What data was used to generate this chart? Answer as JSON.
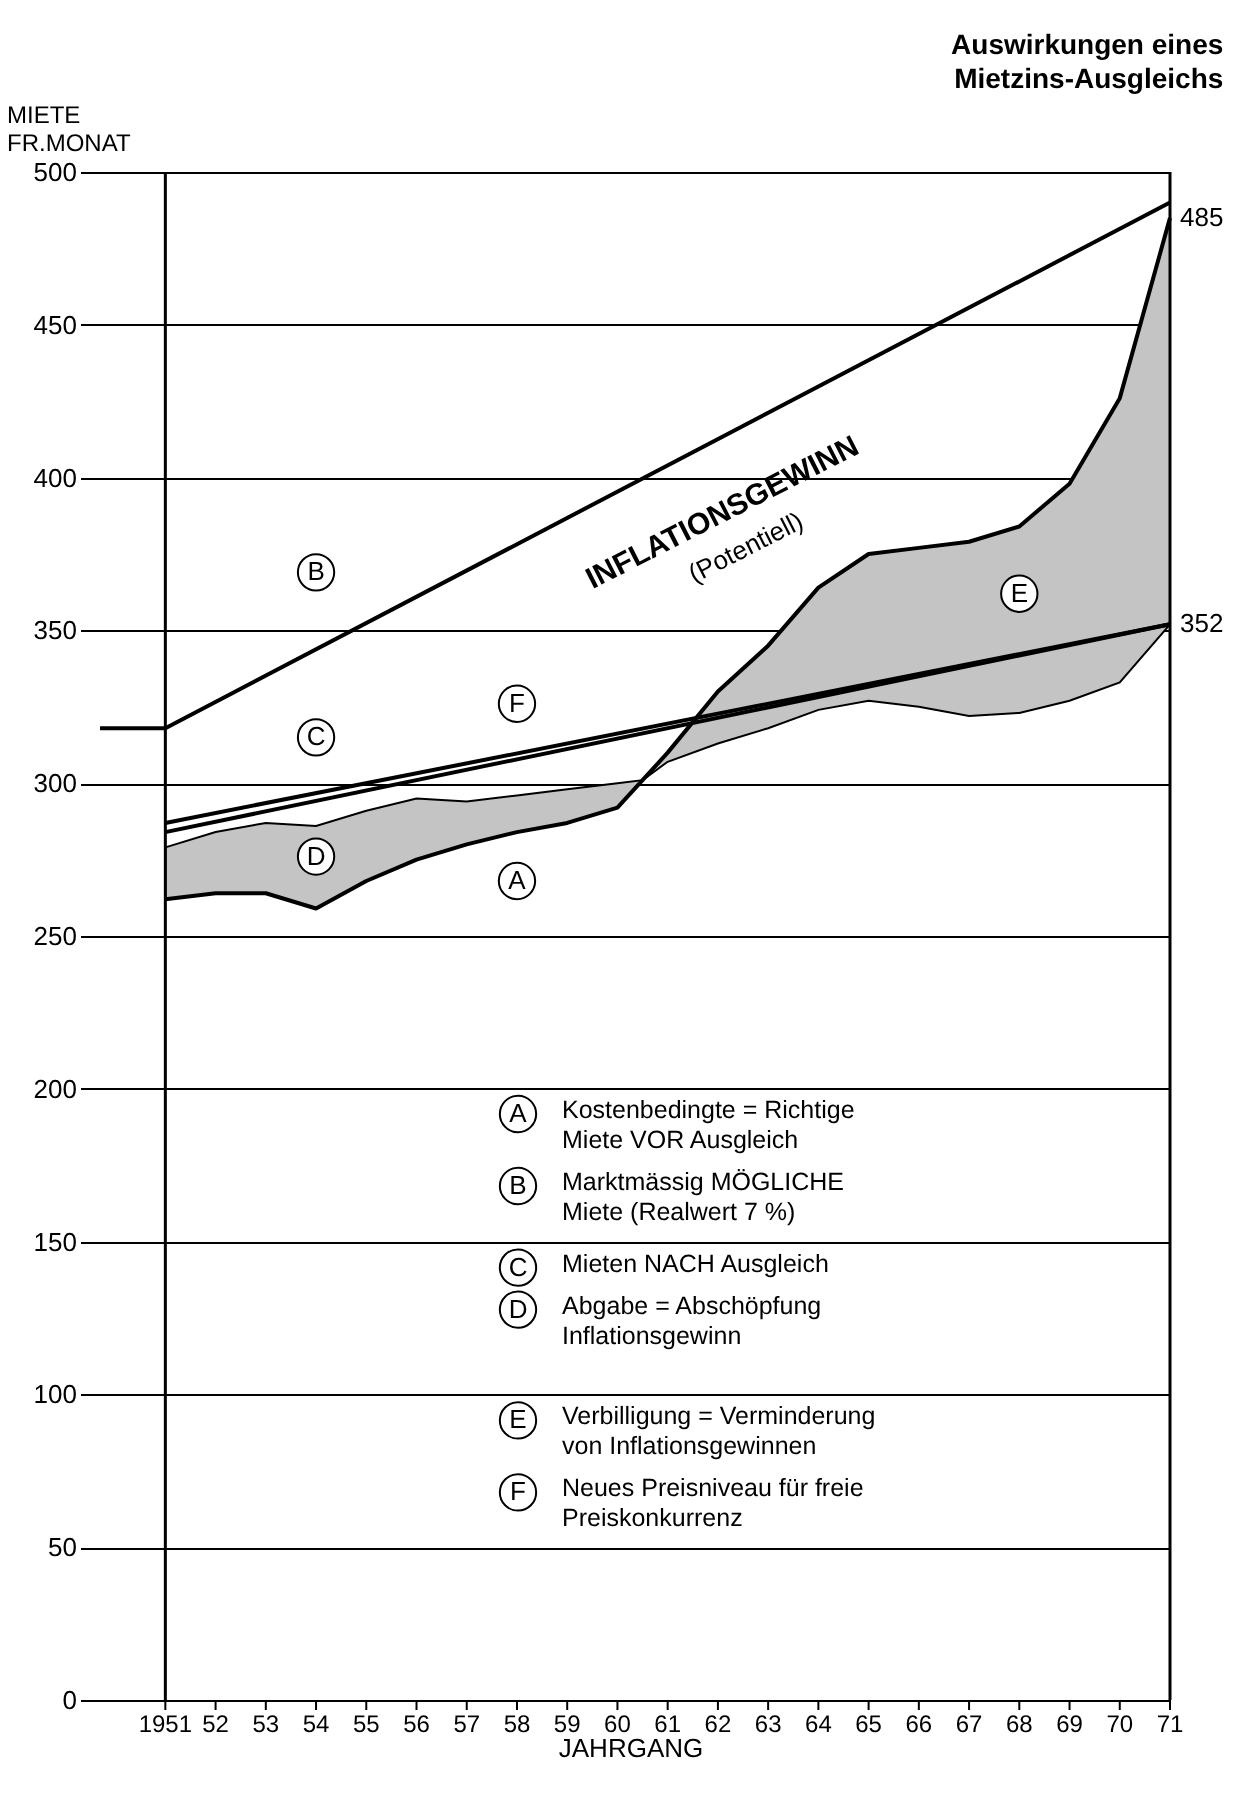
{
  "chart_data": {
    "type": "line",
    "title": "Auswirkungen eines\nMietzins-Ausgleichs",
    "ylabel": "MIETE\nFR.MONAT",
    "xlabel": "JAHRGANG",
    "xlim": [
      1949.5,
      1971
    ],
    "ylim": [
      0,
      500
    ],
    "yticks": [
      0,
      50,
      100,
      150,
      200,
      250,
      300,
      350,
      400,
      450,
      500
    ],
    "xticks": [
      1951,
      {
        "value": 1952,
        "label": "52"
      },
      {
        "value": 1953,
        "label": "53"
      },
      {
        "value": 1954,
        "label": "54"
      },
      {
        "value": 1955,
        "label": "55"
      },
      {
        "value": 1956,
        "label": "56"
      },
      {
        "value": 1957,
        "label": "57"
      },
      {
        "value": 1958,
        "label": "58"
      },
      {
        "value": 1959,
        "label": "59"
      },
      {
        "value": 1960,
        "label": "60"
      },
      {
        "value": 1961,
        "label": "61"
      },
      {
        "value": 1962,
        "label": "62"
      },
      {
        "value": 1963,
        "label": "63"
      },
      {
        "value": 1964,
        "label": "64"
      },
      {
        "value": 1965,
        "label": "65"
      },
      {
        "value": 1966,
        "label": "66"
      },
      {
        "value": 1967,
        "label": "67"
      },
      {
        "value": 1968,
        "label": "68"
      },
      {
        "value": 1969,
        "label": "69"
      },
      {
        "value": 1970,
        "label": "70"
      },
      {
        "value": 1971,
        "label": "71"
      }
    ],
    "grid": "y",
    "series": [
      {
        "color": "#000000",
        "x": [
          1951,
          1952,
          1953,
          1954,
          1955,
          1956,
          1957,
          1958,
          1959,
          1960,
          1960.5,
          1961,
          1962,
          1963,
          1964,
          1965,
          1966,
          1967,
          1968,
          1969,
          1970,
          1971
        ],
        "values": [
          262,
          264,
          264,
          259,
          268,
          275,
          280,
          284,
          287,
          292,
          301,
          310,
          330,
          345,
          364,
          375,
          377,
          379,
          384,
          398,
          426,
          485
        ],
        "lower": [
          262,
          264,
          264,
          259,
          268,
          275,
          280,
          284,
          287,
          292,
          301,
          307,
          313,
          318,
          324,
          327,
          325,
          322,
          323,
          327,
          333,
          352
        ],
        "upper": [
          279,
          284,
          287,
          286,
          291,
          295,
          294,
          296,
          298,
          300,
          301,
          310,
          330,
          345,
          364,
          375,
          377,
          379,
          384,
          398,
          426,
          485
        ]
      },
      {
        "color": "#000000",
        "x": [
          1949.7,
          1951,
          1971
        ],
        "values": [
          318,
          318,
          490
        ]
      },
      {
        "color": "#000000",
        "x": [
          1951,
          1971
        ],
        "values": [
          284,
          352
        ]
      },
      {
        "color": "#000000",
        "x": [
          1951,
          1971
        ],
        "values": [
          287,
          352
        ]
      }
    ],
    "ref_lines": [
      {
        "axis": "x",
        "value": 1951,
        "color": "#000000"
      },
      {
        "axis": "x",
        "value": 1971,
        "color": "#000000"
      }
    ],
    "annotations": [
      {
        "text": "A",
        "x": 1958,
        "y": 268
      },
      {
        "text": "B",
        "x": 1954,
        "y": 369
      },
      {
        "text": "C",
        "x": 1954,
        "y": 315
      },
      {
        "text": "D",
        "x": 1954,
        "y": 276
      },
      {
        "text": "E",
        "x": 1968,
        "y": 362
      },
      {
        "text": "F",
        "x": 1958,
        "y": 326
      },
      {
        "text": "485",
        "x": 1971,
        "y": 485
      },
      {
        "text": "352",
        "x": 1971,
        "y": 352
      },
      "INFLATIONSGEWINN",
      "(Potentiell)",
      "A",
      "Kostenbedingte = Richtige\nMiete VOR Ausgleich",
      "B",
      "Marktmässig MÖGLICHE\nMiete (Realwert 7 %)",
      "C",
      "Mieten NACH Ausgleich",
      "D",
      "Abgabe = Abschöpfung\nInflationsgewinn",
      "E",
      "Verbilligung = Verminderung\nvon Inflationsgewinnen",
      "F",
      "Neues Preisniveau für freie\nPreiskonkurrenz"
    ]
  }
}
